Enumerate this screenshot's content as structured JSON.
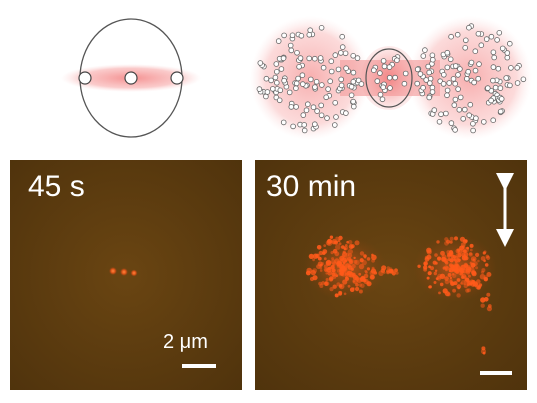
{
  "panels": {
    "left": {
      "time_label": "45 s",
      "scale_label": "2 μm"
    },
    "right": {
      "time_label": "30 min"
    }
  },
  "colors": {
    "micrograph_bg": "#5a3a10",
    "fluor_spot": "#ff5a1a",
    "schematic_glow": "#f7a3a3",
    "outline": "#555555",
    "scale_bar": "#ffffff",
    "arrow": "#ffffff"
  },
  "icons": {
    "axis_arrow": "double-headed-vertical-arrow-icon"
  }
}
